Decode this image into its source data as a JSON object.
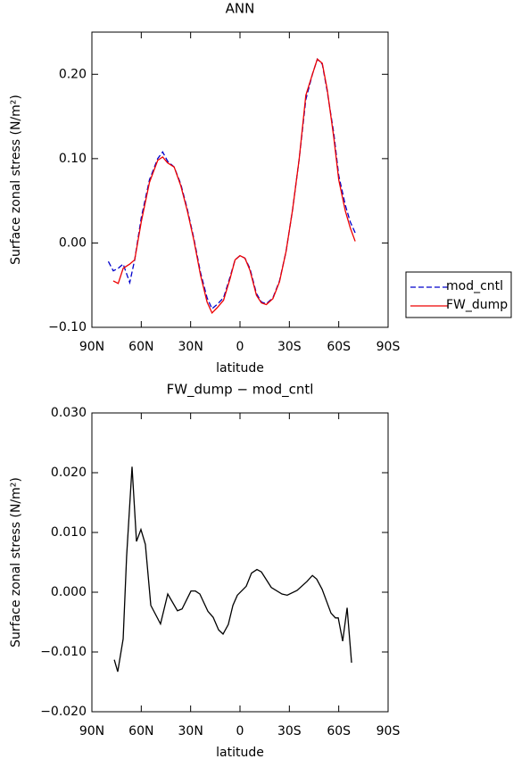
{
  "chart_data": [
    {
      "type": "line",
      "title": "ANN",
      "xlabel": "latitude",
      "ylabel": "Surface zonal stress (N/m²)",
      "xlim": [
        90,
        -90
      ],
      "xticks": [
        {
          "value": 90,
          "label": "90N"
        },
        {
          "value": 60,
          "label": "60N"
        },
        {
          "value": 30,
          "label": "30N"
        },
        0,
        {
          "value": -30,
          "label": "30S"
        },
        {
          "value": -60,
          "label": "60S"
        },
        {
          "value": -90,
          "label": "90S"
        }
      ],
      "ylim": [
        -0.1,
        0.25
      ],
      "yticks": [
        {
          "value": -0.1,
          "label": "−0.10"
        },
        {
          "value": 0,
          "label": "0.00"
        },
        {
          "value": 0.1,
          "label": "0.10"
        },
        {
          "value": 0.2,
          "label": "0.20"
        }
      ],
      "x": [
        80,
        77,
        74,
        71,
        67,
        64,
        60,
        55,
        50,
        47,
        44,
        40,
        36,
        32,
        28,
        24,
        20,
        17,
        14,
        10,
        6,
        3,
        0,
        -3,
        -6,
        -10,
        -13,
        -16,
        -20,
        -24,
        -28,
        -32,
        -36,
        -40,
        -44,
        -47,
        -50,
        -53,
        -57,
        -60,
        -64,
        -67,
        -70
      ],
      "series": [
        {
          "name": "mod_cntl",
          "color": "#0000cc",
          "dashed": true,
          "values": [
            -0.022,
            -0.033,
            -0.03,
            -0.025,
            -0.047,
            -0.02,
            0.03,
            0.075,
            0.1,
            0.108,
            0.097,
            0.09,
            0.07,
            0.04,
            0.005,
            -0.035,
            -0.065,
            -0.078,
            -0.073,
            -0.065,
            -0.04,
            -0.02,
            -0.015,
            -0.018,
            -0.03,
            -0.06,
            -0.07,
            -0.072,
            -0.065,
            -0.045,
            -0.01,
            0.04,
            0.1,
            0.17,
            0.2,
            0.218,
            0.212,
            0.18,
            0.13,
            0.08,
            0.045,
            0.025,
            0.012
          ]
        },
        {
          "name": "FW_dump",
          "color": "#ee0000",
          "dashed": false,
          "values": [
            null,
            -0.045,
            -0.048,
            -0.03,
            -0.025,
            -0.02,
            0.025,
            0.072,
            0.098,
            0.102,
            0.095,
            0.09,
            0.068,
            0.038,
            0.003,
            -0.038,
            -0.07,
            -0.083,
            -0.077,
            -0.068,
            -0.042,
            -0.02,
            -0.015,
            -0.018,
            -0.032,
            -0.062,
            -0.071,
            -0.073,
            -0.066,
            -0.046,
            -0.01,
            0.04,
            0.1,
            0.175,
            0.2,
            0.218,
            0.213,
            0.182,
            0.125,
            0.075,
            0.038,
            0.018,
            0.002
          ]
        }
      ]
    },
    {
      "type": "line",
      "title": "FW_dump − mod_cntl",
      "xlabel": "latitude",
      "ylabel": "Surface zonal stress (N/m²)",
      "xlim": [
        90,
        -90
      ],
      "xticks": [
        {
          "value": 90,
          "label": "90N"
        },
        {
          "value": 60,
          "label": "60N"
        },
        {
          "value": 30,
          "label": "30N"
        },
        0,
        {
          "value": -30,
          "label": "30S"
        },
        {
          "value": -60,
          "label": "60S"
        },
        {
          "value": -90,
          "label": "90S"
        }
      ],
      "ylim": [
        -0.02,
        0.03
      ],
      "yticks": [
        {
          "value": -0.02,
          "label": "−0.020"
        },
        {
          "value": -0.01,
          "label": "−0.010"
        },
        {
          "value": 0,
          "label": "0.000"
        },
        {
          "value": 0.01,
          "label": "0.010"
        },
        {
          "value": 0.02,
          "label": "0.020"
        },
        {
          "value": 0.03,
          "label": "0.030"
        }
      ],
      "x": [
        76.4,
        74.3,
        71,
        68.9,
        65.6,
        62.9,
        60.2,
        57.5,
        54.2,
        48.3,
        43.9,
        38,
        35.2,
        29.8,
        27.1,
        24.4,
        19.5,
        16.3,
        13,
        10.3,
        7.1,
        4.3,
        1.6,
        -3.8,
        -7,
        -10.3,
        -13,
        -19,
        -25.5,
        -28.7,
        -34.7,
        -40.7,
        -44,
        -46.6,
        -49.9,
        -55.3,
        -58,
        -59.7,
        -62.4,
        -65.1,
        -67.8
      ],
      "series": [
        {
          "color": "#000000",
          "dashed": false,
          "values": [
            -0.0113,
            -0.0133,
            -0.0078,
            0.006,
            0.021,
            0.0085,
            0.0105,
            0.008,
            -0.0022,
            -0.0053,
            -0.0003,
            -0.0031,
            -0.0028,
            0.0002,
            0.0002,
            -0.0003,
            -0.0032,
            -0.0042,
            -0.0063,
            -0.007,
            -0.0054,
            -0.0022,
            -0.0005,
            0.001,
            0.0032,
            0.0038,
            0.0034,
            0.0008,
            -0.0003,
            -0.0005,
            0.0003,
            0.0018,
            0.0028,
            0.0022,
            0.0005,
            -0.0035,
            -0.0043,
            -0.0043,
            -0.0082,
            -0.0026,
            -0.0118
          ]
        }
      ]
    }
  ]
}
